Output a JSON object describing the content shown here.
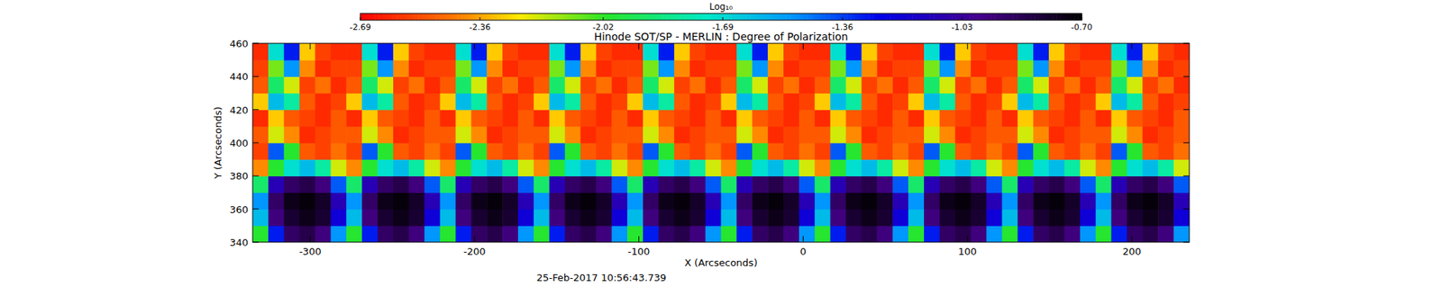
{
  "chart_data": {
    "type": "heatmap",
    "title": "Hinode SOT/SP - MERLIN : Degree of Polarization",
    "x_label": "X (Arcseconds)",
    "y_label": "Y (Arcseconds)",
    "annotations": [
      "25-Feb-2017 10:56:43.739"
    ],
    "xlim": [
      -335,
      235
    ],
    "ylim": [
      340,
      460
    ],
    "xticks": [
      -300,
      -200,
      -100,
      0,
      100,
      200
    ],
    "yticks": [
      340,
      360,
      380,
      400,
      420,
      440,
      460
    ],
    "x": [
      -330.25,
      -320.75,
      -311.25,
      -301.75,
      -292.25,
      -282.75,
      -273.25,
      -263.75,
      -254.25,
      -244.75,
      -235.25,
      -225.75,
      -216.25,
      -206.75,
      -197.25,
      -187.75,
      -178.25,
      -168.75,
      -159.25,
      -149.75,
      -140.25,
      -130.75,
      -121.25,
      -111.75,
      -102.25,
      -92.75,
      -83.25,
      -73.75,
      -64.25,
      -54.75,
      -45.25,
      -35.75,
      -26.25,
      -16.75,
      -7.25,
      2.25,
      11.75,
      21.25,
      30.75,
      40.25,
      49.75,
      59.25,
      68.75,
      78.25,
      87.75,
      97.25,
      106.75,
      116.25,
      125.75,
      135.25,
      144.75,
      154.25,
      163.75,
      173.25,
      182.75,
      192.25,
      201.75,
      211.25,
      220.75,
      230.25
    ],
    "y": [
      345,
      355,
      365,
      375,
      385,
      395,
      405,
      415,
      425,
      435,
      445,
      455
    ],
    "z": [
      [
        -2.0,
        -1.3,
        -0.9,
        -0.85,
        -0.95,
        -1.5,
        -2.0,
        -1.3,
        -0.9,
        -0.85,
        -0.95,
        -1.5,
        -2.0,
        -1.3,
        -0.9,
        -0.85,
        -0.95,
        -1.5,
        -2.0,
        -1.3,
        -0.9,
        -0.85,
        -0.95,
        -1.5,
        -2.0,
        -1.3,
        -0.9,
        -0.85,
        -0.95,
        -1.5,
        -2.0,
        -1.3,
        -0.9,
        -0.85,
        -0.95,
        -1.5,
        -2.0,
        -1.3,
        -0.9,
        -0.85,
        -0.95,
        -1.5,
        -2.0,
        -1.3,
        -0.9,
        -0.85,
        -0.95,
        -1.5,
        -2.0,
        -1.3,
        -0.9,
        -0.85,
        -0.95,
        -1.5,
        -2.0,
        -1.3,
        -0.9,
        -0.85,
        -0.95,
        -1.5
      ],
      [
        -1.6,
        -0.95,
        -0.8,
        -0.75,
        -0.8,
        -1.2,
        -1.6,
        -0.95,
        -0.8,
        -0.75,
        -0.8,
        -1.2,
        -1.6,
        -0.95,
        -0.8,
        -0.75,
        -0.8,
        -1.2,
        -1.6,
        -0.95,
        -0.8,
        -0.75,
        -0.8,
        -1.2,
        -1.6,
        -0.95,
        -0.8,
        -0.75,
        -0.8,
        -1.2,
        -1.6,
        -0.95,
        -0.8,
        -0.75,
        -0.8,
        -1.2,
        -1.6,
        -0.95,
        -0.8,
        -0.75,
        -0.8,
        -1.2,
        -1.6,
        -0.95,
        -0.8,
        -0.75,
        -0.8,
        -1.2,
        -1.6,
        -0.95,
        -0.8,
        -0.75,
        -0.8,
        -1.2,
        -1.6,
        -0.95,
        -0.8,
        -0.75,
        -0.8,
        -1.2
      ],
      [
        -1.5,
        -0.9,
        -0.75,
        -0.72,
        -0.78,
        -1.1,
        -1.5,
        -0.9,
        -0.75,
        -0.72,
        -0.78,
        -1.1,
        -1.5,
        -0.9,
        -0.75,
        -0.72,
        -0.78,
        -1.1,
        -1.5,
        -0.9,
        -0.75,
        -0.72,
        -0.78,
        -1.1,
        -1.5,
        -0.9,
        -0.75,
        -0.72,
        -0.78,
        -1.1,
        -1.5,
        -0.9,
        -0.75,
        -0.72,
        -0.78,
        -1.1,
        -1.5,
        -0.9,
        -0.75,
        -0.72,
        -0.78,
        -1.1,
        -1.5,
        -0.9,
        -0.75,
        -0.72,
        -0.78,
        -1.1,
        -1.5,
        -0.9,
        -0.75,
        -0.72,
        -0.78,
        -1.1,
        -1.5,
        -0.9,
        -0.75,
        -0.72,
        -0.78,
        -1.1
      ],
      [
        -1.9,
        -1.1,
        -0.9,
        -0.85,
        -0.95,
        -1.4,
        -1.9,
        -1.1,
        -0.9,
        -0.85,
        -0.95,
        -1.4,
        -1.9,
        -1.1,
        -0.9,
        -0.85,
        -0.95,
        -1.4,
        -1.9,
        -1.1,
        -0.9,
        -0.85,
        -0.95,
        -1.4,
        -1.9,
        -1.1,
        -0.9,
        -0.85,
        -0.95,
        -1.4,
        -1.9,
        -1.1,
        -0.9,
        -0.85,
        -0.95,
        -1.4,
        -1.9,
        -1.1,
        -0.9,
        -0.85,
        -0.95,
        -1.4,
        -1.9,
        -1.1,
        -0.9,
        -0.85,
        -0.95,
        -1.4,
        -1.9,
        -1.1,
        -0.9,
        -0.85,
        -0.95,
        -1.4,
        -1.9,
        -1.1,
        -0.9,
        -0.85,
        -0.95,
        -1.4
      ],
      [
        -2.4,
        -2.0,
        -1.7,
        -1.6,
        -1.8,
        -2.2,
        -2.4,
        -2.0,
        -1.7,
        -1.6,
        -1.8,
        -2.2,
        -2.4,
        -2.0,
        -1.7,
        -1.6,
        -1.8,
        -2.2,
        -2.4,
        -2.0,
        -1.7,
        -1.6,
        -1.8,
        -2.2,
        -2.4,
        -2.0,
        -1.7,
        -1.6,
        -1.8,
        -2.2,
        -2.4,
        -2.0,
        -1.7,
        -1.6,
        -1.8,
        -2.2,
        -2.4,
        -2.0,
        -1.7,
        -1.6,
        -1.8,
        -2.2,
        -2.4,
        -2.0,
        -1.7,
        -1.6,
        -1.8,
        -2.2,
        -2.4,
        -2.0,
        -1.7,
        -1.6,
        -1.8,
        -2.2,
        -2.4,
        -2.0,
        -1.7,
        -1.6,
        -1.8,
        -2.2
      ],
      [
        -2.55,
        -1.4,
        -2.0,
        -2.5,
        -2.55,
        -2.45,
        -2.55,
        -1.4,
        -2.0,
        -2.5,
        -2.55,
        -2.45,
        -2.55,
        -1.4,
        -2.0,
        -2.5,
        -2.55,
        -2.45,
        -2.55,
        -1.4,
        -2.0,
        -2.5,
        -2.55,
        -2.45,
        -2.55,
        -1.4,
        -2.0,
        -2.5,
        -2.55,
        -2.45,
        -2.55,
        -1.4,
        -2.0,
        -2.5,
        -2.55,
        -2.45,
        -2.55,
        -1.4,
        -2.0,
        -2.5,
        -2.55,
        -2.45,
        -2.55,
        -1.4,
        -2.0,
        -2.5,
        -2.55,
        -2.45,
        -2.55,
        -1.4,
        -2.0,
        -2.5,
        -2.55,
        -2.45,
        -2.55,
        -1.4,
        -2.0,
        -2.5,
        -2.55,
        -2.45
      ],
      [
        -2.5,
        -2.2,
        -2.4,
        -2.6,
        -2.55,
        -2.5,
        -2.5,
        -2.2,
        -2.4,
        -2.6,
        -2.55,
        -2.5,
        -2.5,
        -2.2,
        -2.4,
        -2.6,
        -2.55,
        -2.5,
        -2.5,
        -2.2,
        -2.4,
        -2.6,
        -2.55,
        -2.5,
        -2.5,
        -2.2,
        -2.4,
        -2.6,
        -2.55,
        -2.5,
        -2.5,
        -2.2,
        -2.4,
        -2.6,
        -2.55,
        -2.5,
        -2.5,
        -2.2,
        -2.4,
        -2.6,
        -2.55,
        -2.5,
        -2.5,
        -2.2,
        -2.4,
        -2.6,
        -2.55,
        -2.5,
        -2.5,
        -2.2,
        -2.4,
        -2.6,
        -2.55,
        -2.5,
        -2.5,
        -2.2,
        -2.4,
        -2.6,
        -2.55,
        -2.5
      ],
      [
        -2.6,
        -2.3,
        -2.5,
        -2.55,
        -2.6,
        -2.5,
        -2.6,
        -2.3,
        -2.5,
        -2.55,
        -2.6,
        -2.5,
        -2.6,
        -2.3,
        -2.5,
        -2.55,
        -2.6,
        -2.5,
        -2.6,
        -2.3,
        -2.5,
        -2.55,
        -2.6,
        -2.5,
        -2.6,
        -2.3,
        -2.5,
        -2.55,
        -2.6,
        -2.5,
        -2.6,
        -2.3,
        -2.5,
        -2.55,
        -2.6,
        -2.5,
        -2.6,
        -2.3,
        -2.5,
        -2.55,
        -2.6,
        -2.5,
        -2.6,
        -2.3,
        -2.5,
        -2.55,
        -2.6,
        -2.5,
        -2.6,
        -2.3,
        -2.5,
        -2.55,
        -2.6,
        -2.5,
        -2.6,
        -2.3,
        -2.5,
        -2.55,
        -2.6,
        -2.5
      ],
      [
        -2.3,
        -1.6,
        -1.8,
        -2.5,
        -2.6,
        -2.55,
        -2.3,
        -1.6,
        -1.8,
        -2.5,
        -2.6,
        -2.55,
        -2.3,
        -1.6,
        -1.8,
        -2.5,
        -2.6,
        -2.55,
        -2.3,
        -1.6,
        -1.8,
        -2.5,
        -2.6,
        -2.55,
        -2.3,
        -1.6,
        -1.8,
        -2.5,
        -2.6,
        -2.55,
        -2.3,
        -1.6,
        -1.8,
        -2.5,
        -2.6,
        -2.55,
        -2.3,
        -1.6,
        -1.8,
        -2.5,
        -2.6,
        -2.55,
        -2.3,
        -1.6,
        -1.8,
        -2.5,
        -2.6,
        -2.55,
        -2.3,
        -1.6,
        -1.8,
        -2.5,
        -2.6,
        -2.55,
        -2.3,
        -1.6,
        -1.8,
        -2.5,
        -2.6,
        -2.55
      ],
      [
        -2.5,
        -1.9,
        -2.2,
        -2.55,
        -2.45,
        -2.6,
        -2.5,
        -1.9,
        -2.2,
        -2.55,
        -2.45,
        -2.6,
        -2.5,
        -1.9,
        -2.2,
        -2.55,
        -2.45,
        -2.6,
        -2.5,
        -1.9,
        -2.2,
        -2.55,
        -2.45,
        -2.6,
        -2.5,
        -1.9,
        -2.2,
        -2.55,
        -2.45,
        -2.6,
        -2.5,
        -1.9,
        -2.2,
        -2.55,
        -2.45,
        -2.6,
        -2.5,
        -1.9,
        -2.2,
        -2.55,
        -2.45,
        -2.6,
        -2.5,
        -1.9,
        -2.2,
        -2.55,
        -2.45,
        -2.6,
        -2.5,
        -1.9,
        -2.2,
        -2.55,
        -2.45,
        -2.6,
        -2.5,
        -1.9,
        -2.2,
        -2.55,
        -2.45,
        -2.6
      ],
      [
        -2.55,
        -2.1,
        -1.5,
        -2.4,
        -2.6,
        -2.55,
        -2.55,
        -2.1,
        -1.5,
        -2.4,
        -2.6,
        -2.55,
        -2.55,
        -2.1,
        -1.5,
        -2.4,
        -2.6,
        -2.55,
        -2.55,
        -2.1,
        -1.5,
        -2.4,
        -2.6,
        -2.55,
        -2.55,
        -2.1,
        -1.5,
        -2.4,
        -2.6,
        -2.55,
        -2.55,
        -2.1,
        -1.5,
        -2.4,
        -2.6,
        -2.55,
        -2.55,
        -2.1,
        -1.5,
        -2.4,
        -2.6,
        -2.55,
        -2.55,
        -2.1,
        -1.5,
        -2.4,
        -2.6,
        -2.55,
        -2.55,
        -2.1,
        -1.5,
        -2.4,
        -2.6,
        -2.55,
        -2.55,
        -2.1,
        -1.5,
        -2.4,
        -2.6,
        -2.55
      ],
      [
        -2.6,
        -1.7,
        -1.3,
        -2.3,
        -2.55,
        -2.6,
        -2.6,
        -1.7,
        -1.3,
        -2.3,
        -2.55,
        -2.6,
        -2.6,
        -1.7,
        -1.3,
        -2.3,
        -2.55,
        -2.6,
        -2.6,
        -1.7,
        -1.3,
        -2.3,
        -2.55,
        -2.6,
        -2.6,
        -1.7,
        -1.3,
        -2.3,
        -2.55,
        -2.6,
        -2.6,
        -1.7,
        -1.3,
        -2.3,
        -2.55,
        -2.6,
        -2.6,
        -1.7,
        -1.3,
        -2.3,
        -2.55,
        -2.6,
        -2.6,
        -1.7,
        -1.3,
        -2.3,
        -2.55,
        -2.6,
        -2.6,
        -1.7,
        -1.3,
        -2.3,
        -2.55,
        -2.6,
        -2.6,
        -1.7,
        -1.3,
        -2.3,
        -2.55,
        -2.6
      ]
    ],
    "colorbar_title": "Log₁₀",
    "zlim": [
      -2.69,
      -0.7
    ],
    "zticks": [
      -2.69,
      -2.36,
      -2.02,
      -1.69,
      -1.36,
      -1.03,
      {
        "value": -0.7,
        "label": "-0.70"
      }
    ]
  }
}
